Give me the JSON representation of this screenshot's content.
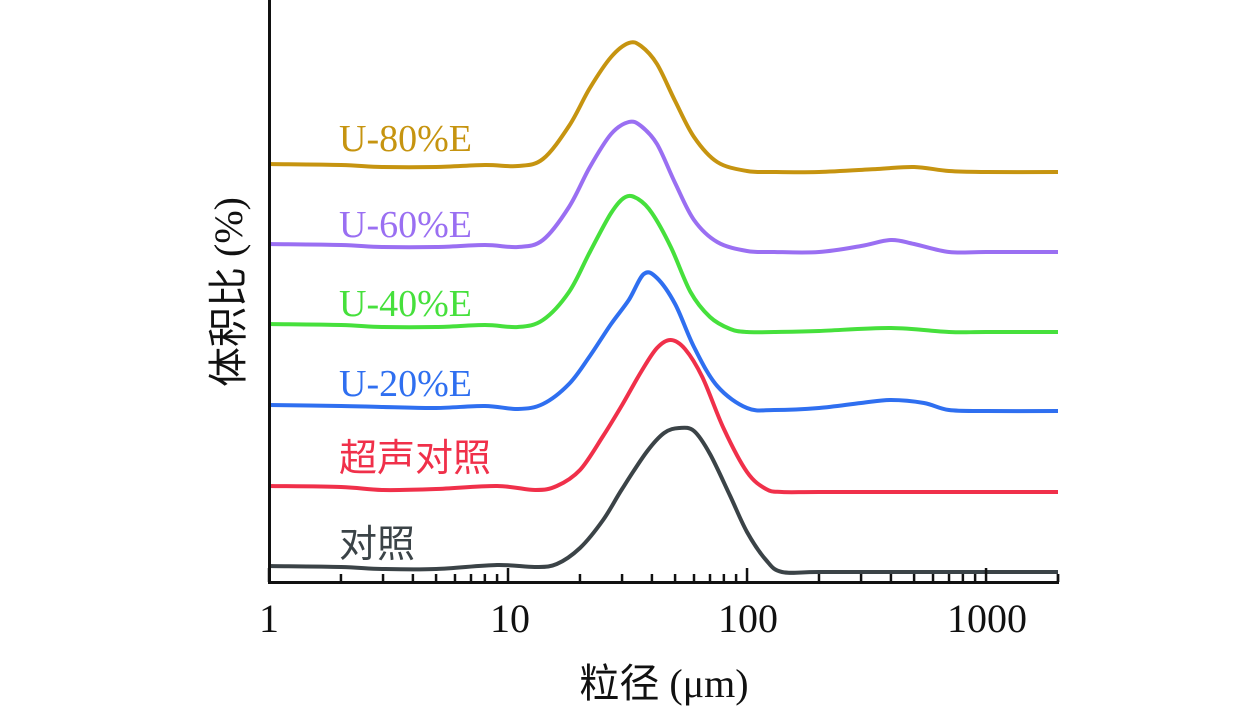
{
  "chart_data": {
    "type": "line",
    "title": "",
    "xlabel": "粒径 (μm)",
    "ylabel": "体积比 (%)",
    "xscale": "log",
    "xlim": [
      1,
      2000
    ],
    "ylim": [
      0,
      58.2
    ],
    "y_ticks_shown": false,
    "grid": false,
    "legend": "inline labels above each curve",
    "x_ticks": [
      {
        "value": 1,
        "label": "1"
      },
      {
        "value": 10,
        "label": "10"
      },
      {
        "value": 100,
        "label": "100"
      },
      {
        "value": 1000,
        "label": "1000"
      }
    ],
    "series": [
      {
        "name": "对照",
        "color": "#3b4347",
        "x": [
          1,
          2,
          3,
          5,
          9,
          13,
          16,
          20,
          25,
          30,
          38,
          45,
          52,
          60,
          70,
          85,
          100,
          120,
          140,
          200,
          500,
          1000,
          2000
        ],
        "y": [
          1.6,
          1.5,
          1.3,
          1.3,
          1.7,
          1.5,
          1.8,
          3.4,
          6.2,
          9.3,
          13.0,
          14.9,
          15.4,
          15.1,
          12.8,
          8.6,
          5.0,
          2.2,
          1.0,
          1.0,
          1.0,
          1.0,
          1.0
        ]
      },
      {
        "name": "超声对照",
        "color": "#f0304a",
        "x": [
          1,
          2,
          3,
          5,
          9,
          13,
          16,
          20,
          25,
          30,
          36,
          42,
          48,
          55,
          65,
          80,
          100,
          120,
          140,
          200,
          500,
          1000,
          2000
        ],
        "y": [
          9.6,
          9.5,
          9.2,
          9.3,
          9.6,
          9.2,
          9.6,
          11.2,
          14.6,
          17.7,
          21.0,
          23.4,
          24.2,
          23.3,
          20.5,
          15.3,
          11.0,
          9.3,
          9.0,
          9.0,
          9.0,
          9.0,
          9.0
        ]
      },
      {
        "name": "U-20%E",
        "color": "#2f6ff0",
        "x": [
          1,
          2,
          3,
          5,
          8,
          11,
          14,
          18,
          22,
          27,
          32,
          37,
          42,
          50,
          60,
          75,
          100,
          130,
          200,
          300,
          400,
          550,
          700,
          1000,
          2000
        ],
        "y": [
          17.7,
          17.6,
          17.5,
          17.4,
          17.6,
          17.3,
          17.8,
          19.8,
          22.6,
          25.8,
          28.2,
          30.8,
          30.4,
          27.8,
          23.5,
          19.6,
          17.4,
          17.2,
          17.4,
          17.9,
          18.2,
          17.9,
          17.2,
          17.1,
          17.1
        ]
      },
      {
        "name": "U-40%E",
        "color": "#46e03c",
        "x": [
          1,
          2,
          3,
          5,
          8,
          11,
          14,
          18,
          22,
          27,
          31,
          35,
          40,
          48,
          58,
          70,
          85,
          100,
          130,
          200,
          400,
          700,
          1000,
          2000
        ],
        "y": [
          25.8,
          25.7,
          25.5,
          25.5,
          25.7,
          25.5,
          26.2,
          29.0,
          33.0,
          36.9,
          38.5,
          38.3,
          36.9,
          33.5,
          29.0,
          26.5,
          25.3,
          25.0,
          25.0,
          25.1,
          25.4,
          25.0,
          25.0,
          25.0
        ]
      },
      {
        "name": "U-60%E",
        "color": "#9a6ff2",
        "x": [
          1,
          2,
          3,
          5,
          8,
          11,
          14,
          18,
          22,
          27,
          32,
          36,
          42,
          50,
          60,
          75,
          100,
          130,
          200,
          300,
          400,
          500,
          700,
          1000,
          2000
        ],
        "y": [
          33.8,
          33.7,
          33.5,
          33.5,
          33.7,
          33.5,
          34.2,
          37.5,
          41.5,
          44.8,
          46.0,
          45.6,
          43.8,
          39.9,
          36.2,
          34.0,
          33.1,
          33.0,
          33.0,
          33.6,
          34.2,
          33.8,
          33.0,
          33.0,
          33.0
        ]
      },
      {
        "name": "U-80%E",
        "color": "#c69410",
        "x": [
          1,
          2,
          3,
          5,
          8,
          11,
          14,
          18,
          22,
          27,
          32,
          36,
          42,
          50,
          60,
          75,
          100,
          130,
          200,
          350,
          500,
          700,
          1000,
          2000
        ],
        "y": [
          41.8,
          41.7,
          41.5,
          41.5,
          41.7,
          41.6,
          42.3,
          45.6,
          49.4,
          52.5,
          53.9,
          53.6,
          51.8,
          48.1,
          44.5,
          42.0,
          41.1,
          41.0,
          41.0,
          41.3,
          41.5,
          41.1,
          41.0,
          41.0
        ]
      }
    ],
    "labels": [
      {
        "text": "U-80%E",
        "series": "U-80%E"
      },
      {
        "text": "U-60%E",
        "series": "U-60%E"
      },
      {
        "text": "U-40%E",
        "series": "U-40%E"
      },
      {
        "text": "U-20%E",
        "series": "U-20%E"
      },
      {
        "text": "超声对照",
        "series": "超声对照"
      },
      {
        "text": "对照",
        "series": "对照"
      }
    ]
  }
}
